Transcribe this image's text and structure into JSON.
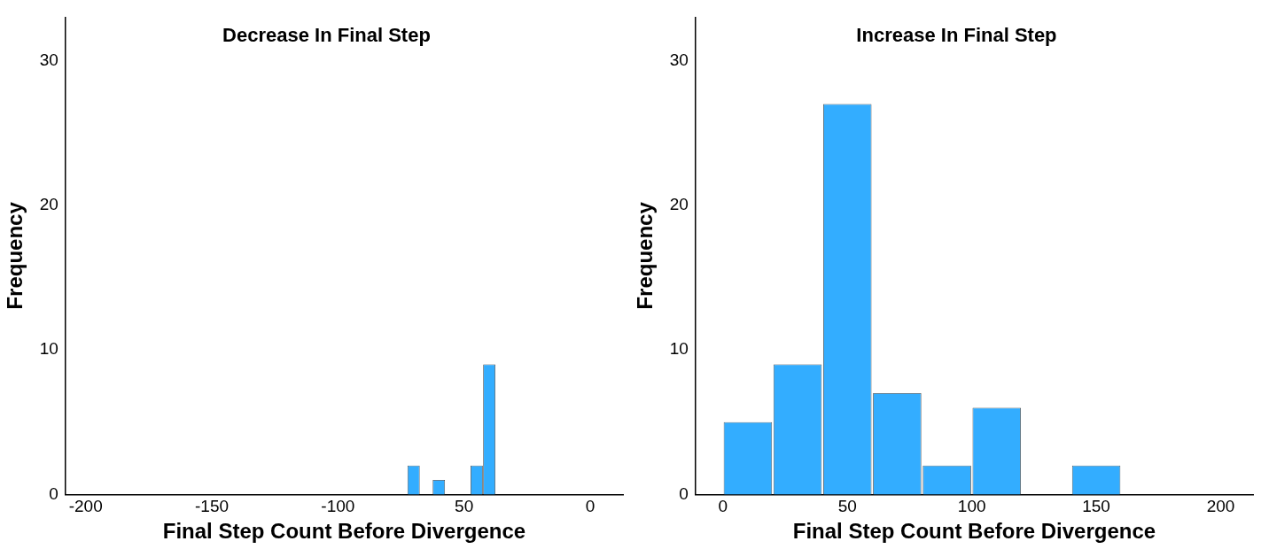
{
  "chart_data": [
    {
      "type": "histogram",
      "title": "Decrease In Final Step",
      "xlabel": "Final Step Count Before Divergence",
      "ylabel": "Frequency",
      "bins": [
        -72.5,
        -67.5,
        -62.5,
        -57.5,
        -52.5,
        -47.5,
        -42.5,
        -37.5
      ],
      "values": [
        2,
        0,
        1,
        0,
        0,
        2,
        9
      ],
      "color": "#33adff",
      "xlim": [
        -208,
        13
      ],
      "xticks": [
        -200,
        -150,
        -100,
        {
          "value": -50,
          "label": "50"
        },
        0
      ],
      "ylim": [
        0,
        33
      ],
      "yticks": [
        0,
        10,
        20,
        30
      ],
      "grid": false,
      "legend": false
    },
    {
      "type": "histogram",
      "title": "Increase In Final Step",
      "xlabel": "Final Step Count Before Divergence",
      "ylabel": "Frequency",
      "bins": [
        0,
        20,
        40,
        60,
        80,
        100,
        120,
        140,
        160
      ],
      "values": [
        5,
        9,
        27,
        7,
        2,
        6,
        0,
        2
      ],
      "color": "#33adff",
      "xlim": [
        -11,
        213
      ],
      "xticks": [
        0,
        50,
        100,
        150,
        200
      ],
      "ylim": [
        0,
        33
      ],
      "yticks": [
        0,
        10,
        20,
        30
      ],
      "grid": false,
      "legend": false
    }
  ]
}
